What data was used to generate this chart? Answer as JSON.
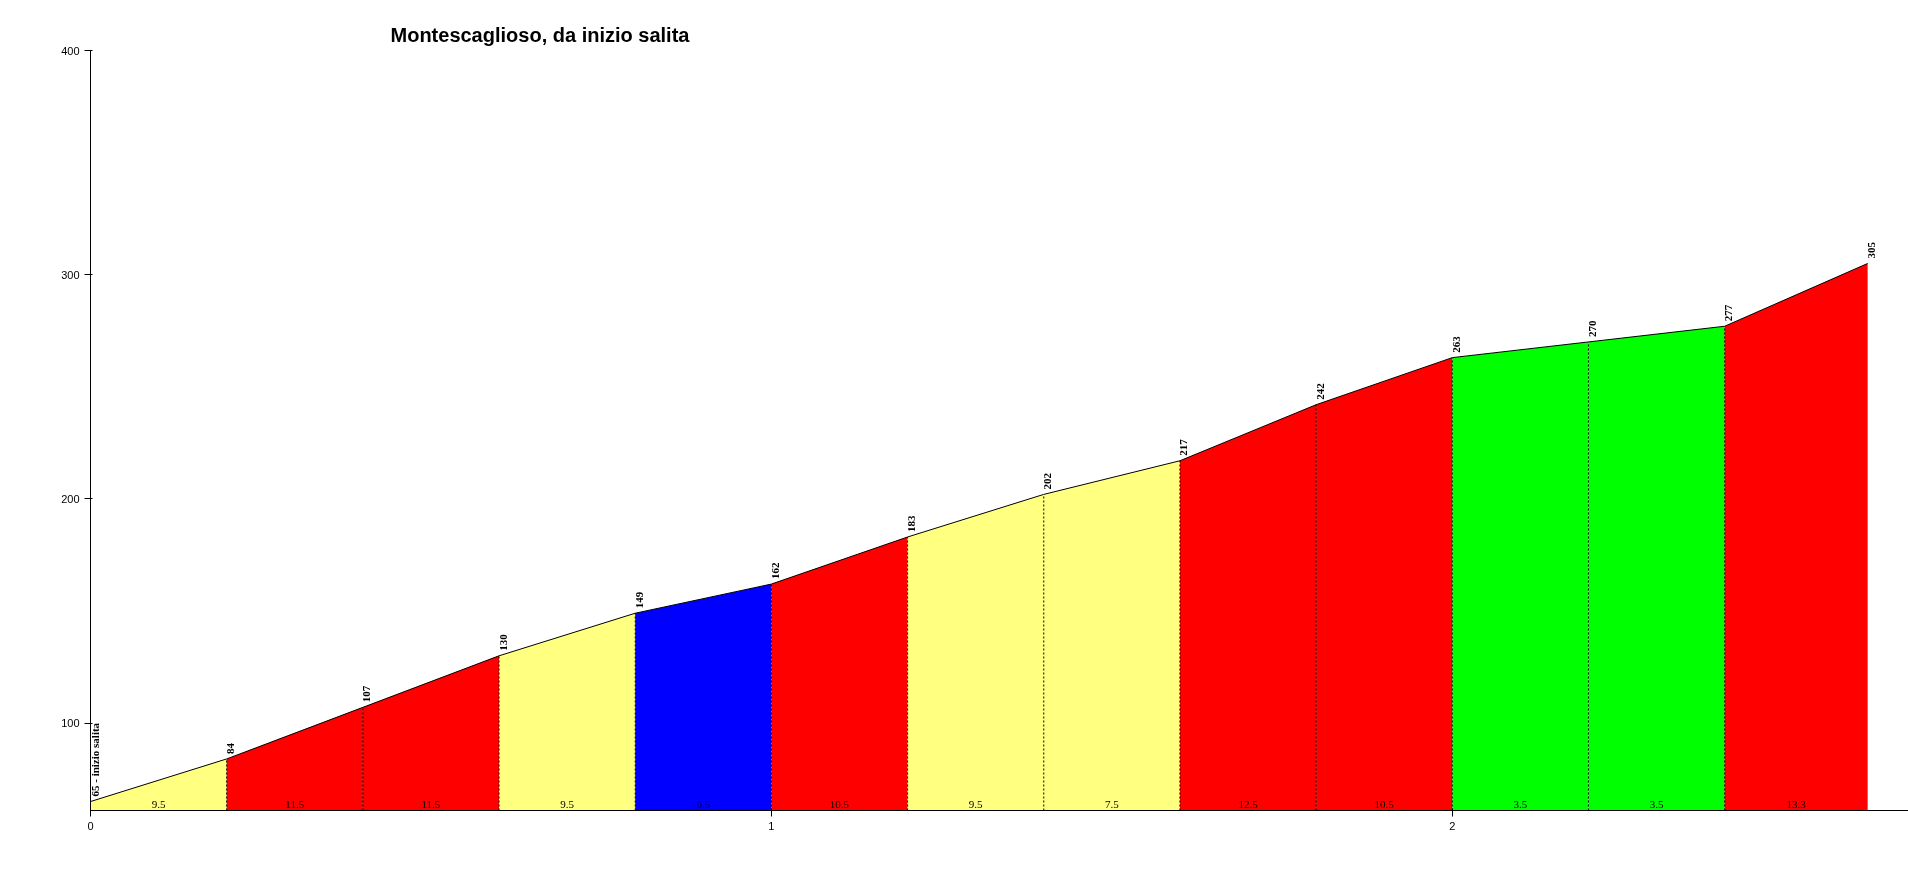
{
  "chart_data": {
    "type": "area",
    "title": "Montescaglioso, da inizio salita",
    "series": [
      {
        "color": "#ffff80",
        "x": [
          0,
          0.2
        ],
        "values": [
          65,
          84
        ],
        "value_labels": [
          "65 - inizio salita",
          null
        ]
      },
      {
        "color": "#ff0000",
        "x": [
          0.2,
          0.4
        ],
        "values": [
          84,
          107
        ],
        "value_labels": [
          "84",
          null
        ]
      },
      {
        "color": "#ff0000",
        "x": [
          0.4,
          0.6
        ],
        "values": [
          107,
          130
        ],
        "value_labels": [
          "107",
          null
        ]
      },
      {
        "color": "#ffff80",
        "x": [
          0.6,
          0.8
        ],
        "values": [
          130,
          149
        ],
        "value_labels": [
          "130",
          null
        ]
      },
      {
        "color": "#0000ff",
        "x": [
          0.8,
          1.0
        ],
        "values": [
          149,
          162
        ],
        "value_labels": [
          "149",
          null
        ]
      },
      {
        "color": "#ff0000",
        "x": [
          1.0,
          1.2
        ],
        "values": [
          162,
          183
        ],
        "value_labels": [
          "162",
          null
        ]
      },
      {
        "color": "#ffff80",
        "x": [
          1.2,
          1.4
        ],
        "values": [
          183,
          202
        ],
        "value_labels": [
          "183",
          null
        ]
      },
      {
        "color": "#ffff80",
        "x": [
          1.4,
          1.6
        ],
        "values": [
          202,
          217
        ],
        "value_labels": [
          "202",
          null
        ]
      },
      {
        "color": "#ff0000",
        "x": [
          1.6,
          1.8
        ],
        "values": [
          217,
          242
        ],
        "value_labels": [
          "217",
          null
        ]
      },
      {
        "color": "#ff0000",
        "x": [
          1.8,
          2.0
        ],
        "values": [
          242,
          263
        ],
        "value_labels": [
          "242",
          null
        ]
      },
      {
        "color": "#00ff00",
        "x": [
          2.0,
          2.2
        ],
        "values": [
          263,
          270
        ],
        "value_labels": [
          "263",
          null
        ]
      },
      {
        "color": "#00ff00",
        "x": [
          2.2,
          2.4
        ],
        "values": [
          270,
          277
        ],
        "value_labels": [
          "270",
          null
        ]
      },
      {
        "color": "#ff0000",
        "x": [
          2.4,
          2.61
        ],
        "values": [
          277,
          305
        ],
        "value_labels": [
          "277",
          "305"
        ]
      }
    ],
    "annotations": [
      "9.5",
      "11.5",
      "11.5",
      "9.5",
      "6.5",
      "10.5",
      "9.5",
      "7.5",
      "12.5",
      "10.5",
      "3.5",
      "3.5",
      "13.3"
    ],
    "xlim": [
      0,
      2.67
    ],
    "ylim": [
      61,
      400
    ],
    "xticks": [
      0,
      1,
      2
    ],
    "yticks": [
      100,
      200,
      300,
      400
    ],
    "grid": false
  }
}
